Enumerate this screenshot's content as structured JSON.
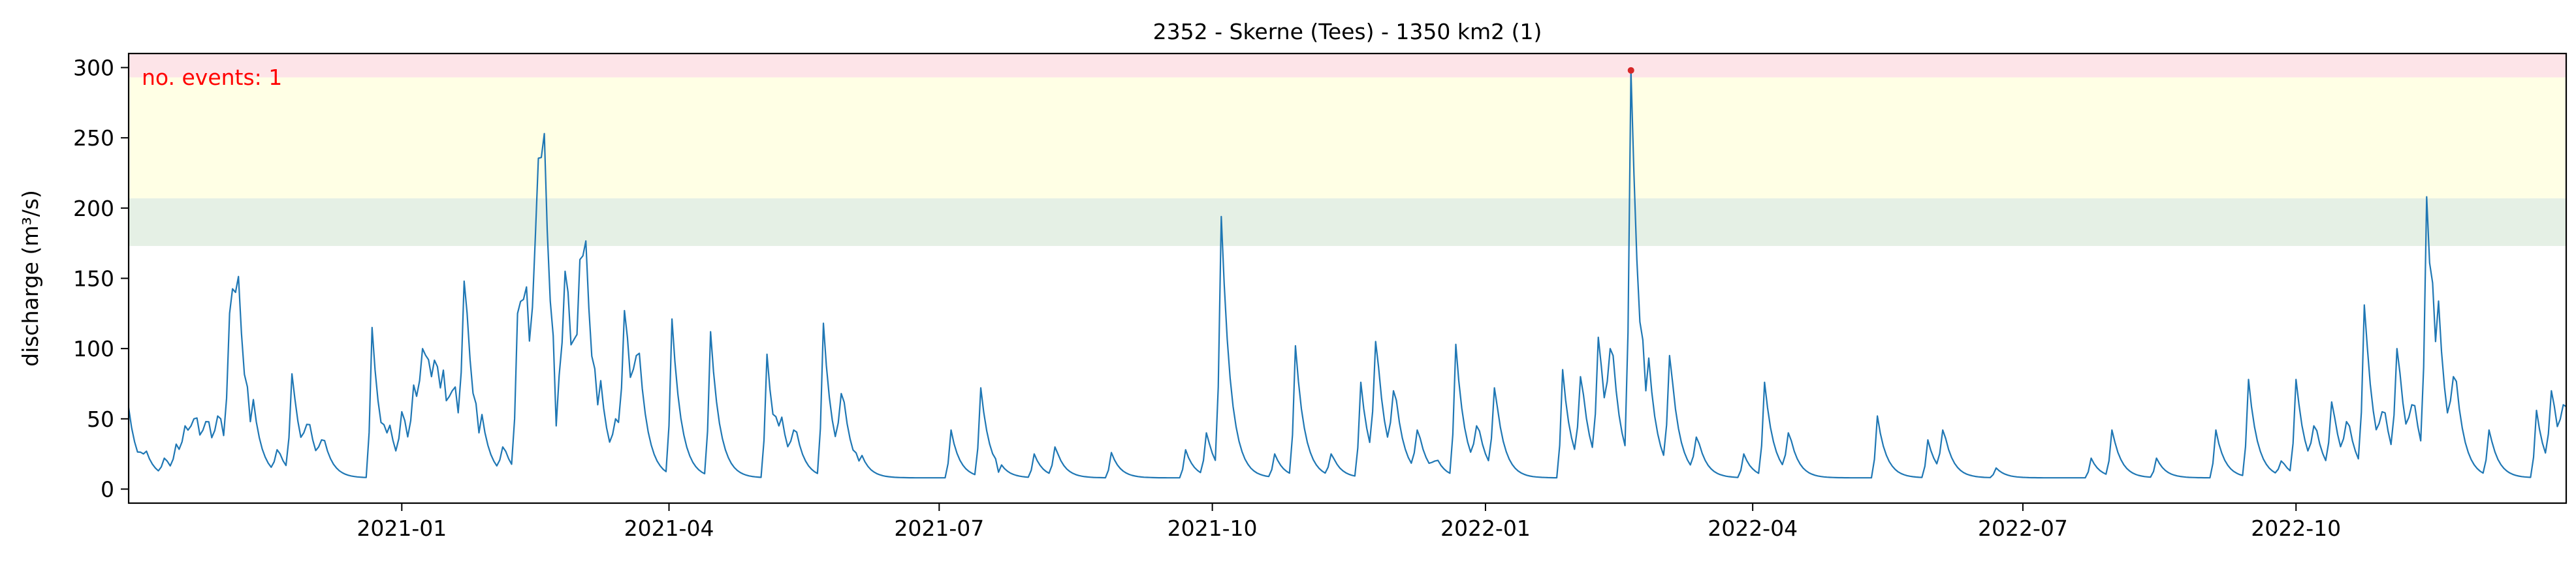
{
  "chart_data": {
    "type": "line",
    "title": "2352 - Skerne (Tees) - 1350 km2 (1)",
    "ylabel": "discharge (m³/s)",
    "xlabel": "",
    "xlim": [
      "2020-10-01",
      "2022-12-31"
    ],
    "ylim": [
      -10,
      310
    ],
    "yticks": [
      0,
      50,
      100,
      150,
      200,
      250,
      300
    ],
    "xticks": [
      {
        "date": "2021-01-01",
        "label": "2021-01"
      },
      {
        "date": "2021-04-01",
        "label": "2021-04"
      },
      {
        "date": "2021-07-01",
        "label": "2021-07"
      },
      {
        "date": "2021-10-01",
        "label": "2021-10"
      },
      {
        "date": "2022-01-01",
        "label": "2022-01"
      },
      {
        "date": "2022-04-01",
        "label": "2022-04"
      },
      {
        "date": "2022-07-01",
        "label": "2022-07"
      },
      {
        "date": "2022-10-01",
        "label": "2022-10"
      }
    ],
    "grid": false,
    "bands": [
      {
        "name": "green",
        "from": 173,
        "to": 207,
        "color": "#e5f0e5"
      },
      {
        "name": "yellow",
        "from": 207,
        "to": 293,
        "color": "#ffffe5"
      },
      {
        "name": "red",
        "from": 293,
        "to": 310,
        "color": "#fde4e8"
      }
    ],
    "annotation": {
      "text": "no. events: 1",
      "color": "#ff0000"
    },
    "events": [
      {
        "date": "2022-02-19",
        "value": 298
      }
    ],
    "series": [
      {
        "color": "#1f77b4",
        "baseline": 8,
        "peaks": [
          {
            "date": "2020-10-01",
            "value": 58
          },
          {
            "date": "2020-10-06",
            "value": 25
          },
          {
            "date": "2020-10-13",
            "value": 22
          },
          {
            "date": "2020-10-17",
            "value": 32
          },
          {
            "date": "2020-10-20",
            "value": 45
          },
          {
            "date": "2020-10-23",
            "value": 50
          },
          {
            "date": "2020-10-27",
            "value": 48
          },
          {
            "date": "2020-10-31",
            "value": 52
          },
          {
            "date": "2020-11-04",
            "value": 125
          },
          {
            "date": "2020-11-06",
            "value": 140
          },
          {
            "date": "2020-11-11",
            "value": 48
          },
          {
            "date": "2020-11-20",
            "value": 28
          },
          {
            "date": "2020-11-25",
            "value": 82
          },
          {
            "date": "2020-11-30",
            "value": 46
          },
          {
            "date": "2020-12-05",
            "value": 35
          },
          {
            "date": "2020-12-22",
            "value": 115
          },
          {
            "date": "2020-12-27",
            "value": 40
          },
          {
            "date": "2021-01-01",
            "value": 55
          },
          {
            "date": "2021-01-05",
            "value": 74
          },
          {
            "date": "2021-01-08",
            "value": 100
          },
          {
            "date": "2021-01-11",
            "value": 80
          },
          {
            "date": "2021-01-14",
            "value": 72
          },
          {
            "date": "2021-01-18",
            "value": 70
          },
          {
            "date": "2021-01-22",
            "value": 148
          },
          {
            "date": "2021-01-27",
            "value": 40
          },
          {
            "date": "2021-02-04",
            "value": 30
          },
          {
            "date": "2021-02-09",
            "value": 125
          },
          {
            "date": "2021-02-11",
            "value": 135
          },
          {
            "date": "2021-02-15",
            "value": 180
          },
          {
            "date": "2021-02-17",
            "value": 236
          },
          {
            "date": "2021-02-22",
            "value": 45
          },
          {
            "date": "2021-02-25",
            "value": 155
          },
          {
            "date": "2021-02-29",
            "value": 110
          },
          {
            "date": "2021-03-03",
            "value": 166
          },
          {
            "date": "2021-03-08",
            "value": 60
          },
          {
            "date": "2021-03-14",
            "value": 50
          },
          {
            "date": "2021-03-17",
            "value": 127
          },
          {
            "date": "2021-03-21",
            "value": 95
          },
          {
            "date": "2021-04-02",
            "value": 121
          },
          {
            "date": "2021-04-15",
            "value": 112
          },
          {
            "date": "2021-05-04",
            "value": 96
          },
          {
            "date": "2021-05-08",
            "value": 45
          },
          {
            "date": "2021-05-13",
            "value": 42
          },
          {
            "date": "2021-05-23",
            "value": 118
          },
          {
            "date": "2021-05-29",
            "value": 68
          },
          {
            "date": "2021-06-04",
            "value": 20
          },
          {
            "date": "2021-07-05",
            "value": 42
          },
          {
            "date": "2021-07-15",
            "value": 72
          },
          {
            "date": "2021-07-21",
            "value": 12
          },
          {
            "date": "2021-08-02",
            "value": 25
          },
          {
            "date": "2021-08-09",
            "value": 30
          },
          {
            "date": "2021-08-28",
            "value": 26
          },
          {
            "date": "2021-09-22",
            "value": 28
          },
          {
            "date": "2021-09-29",
            "value": 40
          },
          {
            "date": "2021-10-04",
            "value": 194
          },
          {
            "date": "2021-10-22",
            "value": 25
          },
          {
            "date": "2021-10-29",
            "value": 102
          },
          {
            "date": "2021-11-10",
            "value": 25
          },
          {
            "date": "2021-11-20",
            "value": 76
          },
          {
            "date": "2021-11-25",
            "value": 105
          },
          {
            "date": "2021-12-01",
            "value": 70
          },
          {
            "date": "2021-12-09",
            "value": 42
          },
          {
            "date": "2021-12-15",
            "value": 20
          },
          {
            "date": "2021-12-22",
            "value": 103
          },
          {
            "date": "2021-12-29",
            "value": 45
          },
          {
            "date": "2022-01-04",
            "value": 72
          },
          {
            "date": "2022-01-27",
            "value": 85
          },
          {
            "date": "2022-02-02",
            "value": 80
          },
          {
            "date": "2022-02-08",
            "value": 108
          },
          {
            "date": "2022-02-12",
            "value": 100
          },
          {
            "date": "2022-02-19",
            "value": 298
          },
          {
            "date": "2022-02-24",
            "value": 70
          },
          {
            "date": "2022-03-04",
            "value": 95
          },
          {
            "date": "2022-03-13",
            "value": 37
          },
          {
            "date": "2022-03-29",
            "value": 25
          },
          {
            "date": "2022-04-05",
            "value": 76
          },
          {
            "date": "2022-04-13",
            "value": 40
          },
          {
            "date": "2022-05-13",
            "value": 52
          },
          {
            "date": "2022-05-30",
            "value": 35
          },
          {
            "date": "2022-06-04",
            "value": 42
          },
          {
            "date": "2022-06-22",
            "value": 15
          },
          {
            "date": "2022-07-24",
            "value": 22
          },
          {
            "date": "2022-07-31",
            "value": 42
          },
          {
            "date": "2022-08-15",
            "value": 22
          },
          {
            "date": "2022-09-04",
            "value": 42
          },
          {
            "date": "2022-09-15",
            "value": 78
          },
          {
            "date": "2022-09-26",
            "value": 20
          },
          {
            "date": "2022-10-01",
            "value": 78
          },
          {
            "date": "2022-10-07",
            "value": 45
          },
          {
            "date": "2022-10-13",
            "value": 62
          },
          {
            "date": "2022-10-18",
            "value": 48
          },
          {
            "date": "2022-10-24",
            "value": 131
          },
          {
            "date": "2022-10-30",
            "value": 55
          },
          {
            "date": "2022-11-04",
            "value": 100
          },
          {
            "date": "2022-11-09",
            "value": 60
          },
          {
            "date": "2022-11-14",
            "value": 208
          },
          {
            "date": "2022-11-17",
            "value": 105
          },
          {
            "date": "2022-11-23",
            "value": 80
          },
          {
            "date": "2022-12-05",
            "value": 42
          },
          {
            "date": "2022-12-21",
            "value": 56
          },
          {
            "date": "2022-12-26",
            "value": 70
          },
          {
            "date": "2022-12-30",
            "value": 60
          }
        ]
      }
    ]
  }
}
